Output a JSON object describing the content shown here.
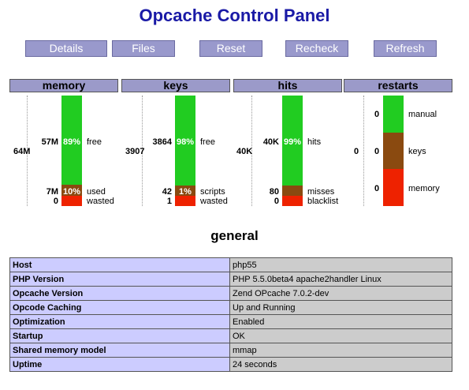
{
  "title": "Opcache Control Panel",
  "buttons": [
    "Details",
    "Files",
    "Reset",
    "Recheck",
    "Refresh"
  ],
  "colors": {
    "free": "#21cc21",
    "used": "#8a4a10",
    "wasted": "#ee2200",
    "header": "#9b9ac9",
    "button": "#9999cc",
    "title": "#1a1aa6"
  },
  "panels": [
    {
      "header": "memory",
      "total": "64M",
      "free": {
        "value": "57M",
        "pct": "89%",
        "label": "free"
      },
      "used": {
        "value": "7M",
        "pct": "10%",
        "label": "used"
      },
      "wasted": {
        "value": "0",
        "label": "wasted"
      },
      "fractions": {
        "free": 0.89,
        "used": 0.1,
        "wasted": 0.01
      }
    },
    {
      "header": "keys",
      "total": "3907",
      "free": {
        "value": "3864",
        "pct": "98%",
        "label": "free"
      },
      "used": {
        "value": "42",
        "pct": "1%",
        "label": "scripts"
      },
      "wasted": {
        "value": "1",
        "label": "wasted"
      },
      "fractions": {
        "free": 0.98,
        "used": 0.01,
        "wasted": 0.01
      }
    },
    {
      "header": "hits",
      "total": "40K",
      "free": {
        "value": "40K",
        "pct": "99%",
        "label": "hits"
      },
      "used": {
        "value": "80",
        "pct": "",
        "label": "misses"
      },
      "wasted": {
        "value": "0",
        "label": "blacklist"
      },
      "fractions": {
        "free": 0.99,
        "used": 0.0,
        "wasted": 0.01
      }
    }
  ],
  "restarts": {
    "header": "restarts",
    "total": "0",
    "manual": {
      "value": "0",
      "label": "manual"
    },
    "keys": {
      "value": "0",
      "label": "keys"
    },
    "memory": {
      "value": "0",
      "label": "memory"
    }
  },
  "general": {
    "heading": "general",
    "rows": [
      {
        "key": "Host",
        "value": "php55"
      },
      {
        "key": "PHP Version",
        "value": "PHP 5.5.0beta4 apache2handler Linux"
      },
      {
        "key": "Opcache Version",
        "value": "Zend OPcache 7.0.2-dev"
      },
      {
        "key": "Opcode Caching",
        "value": "Up and Running"
      },
      {
        "key": "Optimization",
        "value": "Enabled"
      },
      {
        "key": "Startup",
        "value": "OK"
      },
      {
        "key": "Shared memory model",
        "value": "mmap"
      },
      {
        "key": "Uptime",
        "value": "24 seconds"
      }
    ]
  }
}
